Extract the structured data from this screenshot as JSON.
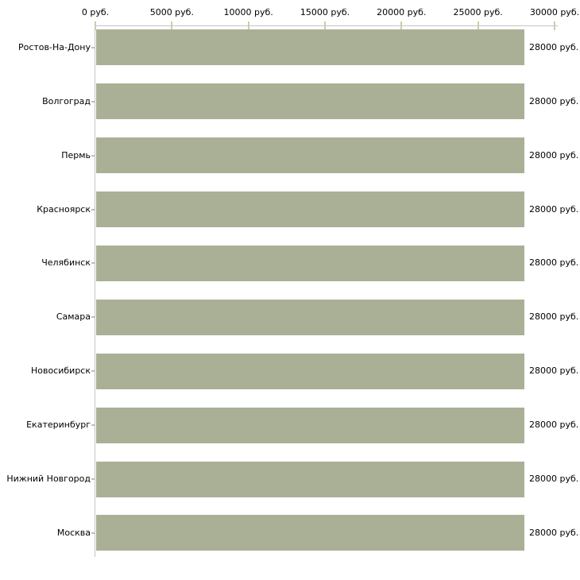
{
  "chart_data": {
    "type": "bar",
    "orientation": "horizontal",
    "categories": [
      "Ростов-На-Дону",
      "Волгоград",
      "Пермь",
      "Красноярск",
      "Челябинск",
      "Самара",
      "Новосибирск",
      "Екатеринбург",
      "Нижний Новгород",
      "Москва"
    ],
    "values": [
      28000,
      28000,
      28000,
      28000,
      28000,
      28000,
      28000,
      28000,
      28000,
      28000
    ],
    "bar_value_labels": [
      "28000 руб.",
      "28000 руб.",
      "28000 руб.",
      "28000 руб.",
      "28000 руб.",
      "28000 руб.",
      "28000 руб.",
      "28000 руб.",
      "28000 руб.",
      "28000 руб."
    ],
    "x_axis": {
      "position": "top",
      "min": 0,
      "max": 30000,
      "tick_values": [
        0,
        5000,
        10000,
        15000,
        20000,
        25000,
        30000
      ],
      "tick_labels": [
        "0 руб.",
        "5000 руб.",
        "10000 руб.",
        "15000 руб.",
        "20000 руб.",
        "25000 руб.",
        "30000 руб."
      ]
    },
    "unit": "руб.",
    "grid": false,
    "legend": false,
    "colors": {
      "bar": "#aab096",
      "axis_line": "#c4c4c4",
      "tick_mark": "#c9cdae",
      "category_dash": "#bfc4a6",
      "text": "#000000",
      "background": "#ffffff"
    }
  }
}
